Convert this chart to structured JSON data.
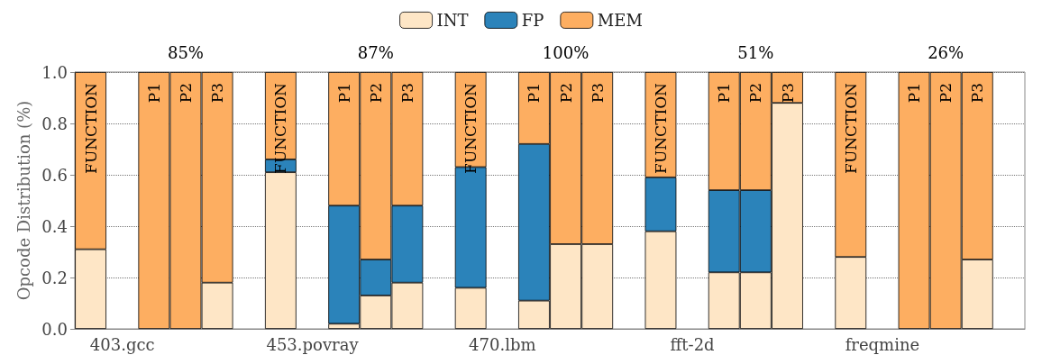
{
  "chart_data": {
    "type": "bar",
    "stacked": true,
    "ylabel": "Opcode Distribution (%)",
    "categories": [
      null,
      "403.gcc",
      null,
      null,
      null,
      null,
      null,
      "453.povray",
      null,
      null,
      null,
      null,
      null,
      "470.lbm",
      null,
      null,
      null,
      null,
      null,
      "fft-2d",
      null,
      null,
      null,
      null,
      null,
      "freqmine",
      null,
      null,
      null,
      null
    ],
    "series": [
      {
        "name": "INT",
        "color": "#fee6c6",
        "values": [
          0.31,
          null,
          0,
          0,
          0.18,
          null,
          0.61,
          null,
          0.02,
          0.13,
          0.18,
          null,
          0.16,
          null,
          0.11,
          0.33,
          0.33,
          null,
          0.38,
          null,
          0.22,
          0.22,
          0.88,
          null,
          0.28,
          null,
          0,
          0,
          0.27,
          null
        ]
      },
      {
        "name": "FP",
        "color": "#2b83ba",
        "values": [
          0,
          null,
          0,
          0,
          0,
          null,
          0.05,
          null,
          0.46,
          0.14,
          0.3,
          null,
          0.47,
          null,
          0.61,
          0,
          0,
          null,
          0.21,
          null,
          0.32,
          0.32,
          0,
          null,
          0,
          null,
          0,
          0,
          0,
          null
        ]
      },
      {
        "name": "MEM",
        "color": "#fdae61",
        "values": [
          0.69,
          null,
          1,
          1,
          0.82,
          null,
          0.34,
          null,
          0.52,
          0.73,
          0.52,
          null,
          0.37,
          null,
          0.28,
          0.67,
          0.67,
          null,
          0.41,
          null,
          0.46,
          0.46,
          0.12,
          null,
          0.72,
          null,
          1,
          1,
          0.73,
          null
        ],
        "value_labels": [
          "FUNCTION",
          null,
          "P1",
          "P2",
          "P3",
          null,
          "FUNCTION",
          null,
          "P1",
          "P2",
          "P3",
          null,
          "FUNCTION",
          null,
          "P1",
          "P2",
          "P3",
          null,
          "FUNCTION",
          null,
          "P1",
          "P2",
          "P3",
          null,
          "FUNCTION",
          null,
          "P1",
          "P2",
          "P3",
          null
        ]
      }
    ],
    "ylim": [
      0,
      1
    ],
    "yticks": [
      {
        "value": 0,
        "label": "0.0"
      },
      {
        "value": 0.2,
        "label": "0.2"
      },
      {
        "value": 0.4,
        "label": "0.4"
      },
      {
        "value": 0.6,
        "label": "0.6"
      },
      {
        "value": 0.8,
        "label": "0.8"
      },
      {
        "value": 1,
        "label": "1.0"
      }
    ],
    "grid": "y",
    "legend": "top",
    "annotations": [
      "85%",
      "87%",
      "100%",
      "51%",
      "26%"
    ]
  }
}
